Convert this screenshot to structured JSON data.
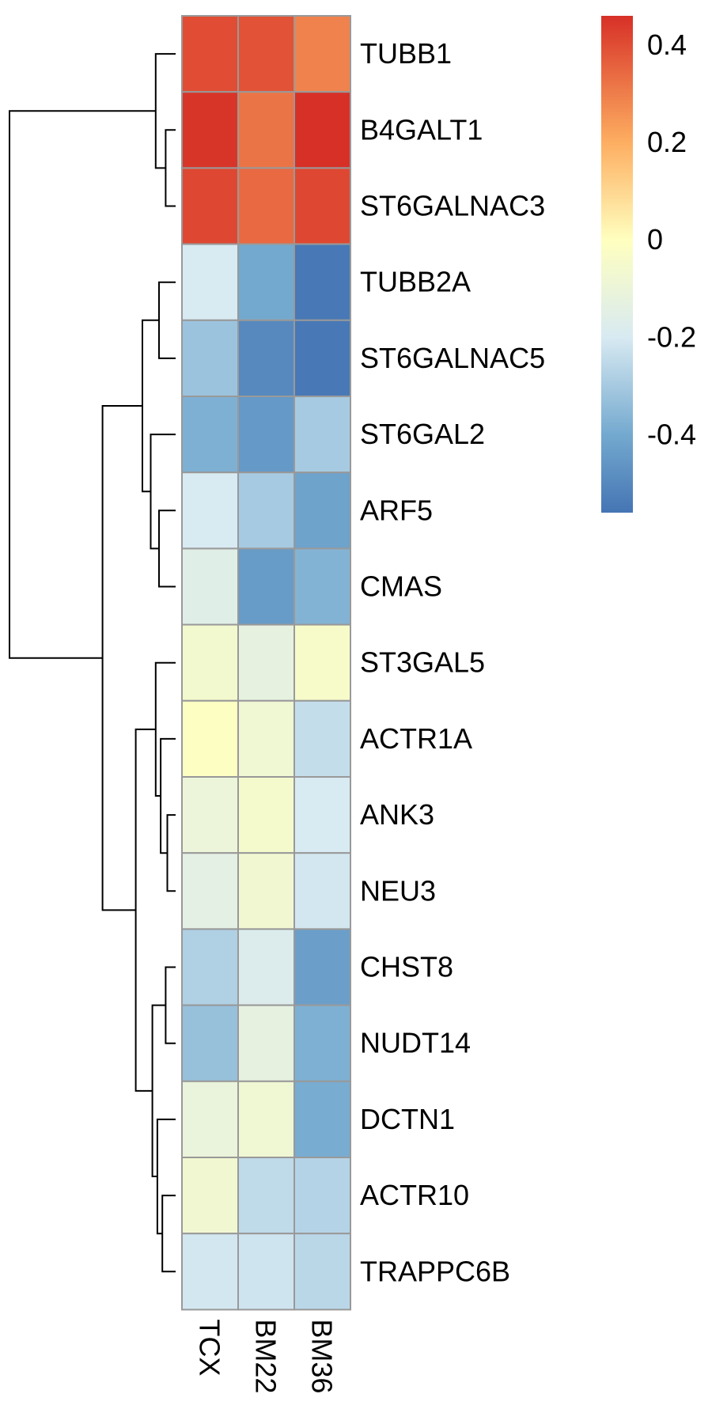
{
  "chart_data": {
    "type": "heatmap",
    "title": "",
    "xlabel": "",
    "ylabel": "",
    "columns": [
      "TCX",
      "BM22",
      "BM36"
    ],
    "rows": [
      "TUBB1",
      "B4GALT1",
      "ST6GALNAC3",
      "TUBB2A",
      "ST6GALNAC5",
      "ST6GAL2",
      "ARF5",
      "CMAS",
      "ST3GAL5",
      "ACTR1A",
      "ANK3",
      "NEU3",
      "CHST8",
      "NUDT14",
      "DCTN1",
      "ACTR10",
      "TRAPPC6B"
    ],
    "values": [
      [
        0.4,
        0.39,
        0.29
      ],
      [
        0.45,
        0.32,
        0.46
      ],
      [
        0.41,
        0.34,
        0.41
      ],
      [
        -0.2,
        -0.4,
        -0.55
      ],
      [
        -0.32,
        -0.5,
        -0.55
      ],
      [
        -0.38,
        -0.45,
        -0.3
      ],
      [
        -0.2,
        -0.3,
        -0.42
      ],
      [
        -0.16,
        -0.44,
        -0.37
      ],
      [
        -0.06,
        -0.13,
        -0.04
      ],
      [
        -0.01,
        -0.08,
        -0.24
      ],
      [
        -0.1,
        -0.05,
        -0.2
      ],
      [
        -0.14,
        -0.07,
        -0.21
      ],
      [
        -0.28,
        -0.18,
        -0.43
      ],
      [
        -0.33,
        -0.13,
        -0.38
      ],
      [
        -0.11,
        -0.08,
        -0.39
      ],
      [
        -0.07,
        -0.25,
        -0.27
      ],
      [
        -0.21,
        -0.22,
        -0.26
      ]
    ],
    "color_scale": {
      "min": -0.56,
      "max": 0.46,
      "stops": [
        {
          "value": -0.56,
          "color": "#4575b4"
        },
        {
          "value": -0.4,
          "color": "#74a9cf"
        },
        {
          "value": -0.2,
          "color": "#d8eaf2"
        },
        {
          "value": 0.0,
          "color": "#ffffbf"
        },
        {
          "value": 0.2,
          "color": "#fdae61"
        },
        {
          "value": 0.46,
          "color": "#d73027"
        }
      ],
      "ticks": [
        {
          "value": 0.4,
          "label": "0.4"
        },
        {
          "value": 0.2,
          "label": "0.2"
        },
        {
          "value": 0.0,
          "label": "0"
        },
        {
          "value": -0.2,
          "label": "-0.2"
        },
        {
          "value": -0.4,
          "label": "-0.4"
        }
      ]
    },
    "row_dendrogram": {
      "order_tips": true,
      "nodes": [
        {
          "id": "n1",
          "children": [
            "ST6GALNAC3",
            "B4GALT1"
          ],
          "height": 0.06
        },
        {
          "id": "n2",
          "children": [
            "TUBB1",
            "n1"
          ],
          "height": 0.12
        },
        {
          "id": "n3",
          "children": [
            "TUBB2A",
            "ST6GALNAC5"
          ],
          "height": 0.1
        },
        {
          "id": "n4",
          "children": [
            "ARF5",
            "CMAS"
          ],
          "height": 0.1
        },
        {
          "id": "n5",
          "children": [
            "ST6GAL2",
            "n4"
          ],
          "height": 0.15
        },
        {
          "id": "n6",
          "children": [
            "n3",
            "n5"
          ],
          "height": 0.2
        },
        {
          "id": "n7",
          "children": [
            "ANK3",
            "NEU3"
          ],
          "height": 0.05
        },
        {
          "id": "n8",
          "children": [
            "ACTR1A",
            "n7"
          ],
          "height": 0.09
        },
        {
          "id": "n9",
          "children": [
            "ST3GAL5",
            "n8"
          ],
          "height": 0.12
        },
        {
          "id": "n10",
          "children": [
            "CHST8",
            "NUDT14"
          ],
          "height": 0.06
        },
        {
          "id": "n11",
          "children": [
            "ACTR10",
            "TRAPPC6B"
          ],
          "height": 0.08
        },
        {
          "id": "n12",
          "children": [
            "DCTN1",
            "n11"
          ],
          "height": 0.11
        },
        {
          "id": "n13",
          "children": [
            "n10",
            "n12"
          ],
          "height": 0.14
        },
        {
          "id": "n14",
          "children": [
            "n9",
            "n13"
          ],
          "height": 0.24
        },
        {
          "id": "n15",
          "children": [
            "n6",
            "n14"
          ],
          "height": 0.44
        },
        {
          "id": "n16",
          "children": [
            "n2",
            "n15"
          ],
          "height": 1.0
        }
      ]
    }
  }
}
